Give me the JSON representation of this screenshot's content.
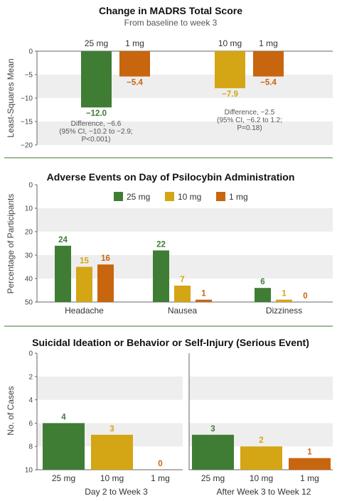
{
  "colors": {
    "25 mg": "#3f7d35",
    "10 mg": "#d4a514",
    "1 mg": "#c8650f",
    "band": "#eeeeee",
    "divider": "#7aa66e"
  },
  "chart_data": [
    {
      "type": "bar",
      "title": "Change in MADRS Total Score",
      "subtitle": "From baseline to week 3",
      "ylabel": "Least-Squares Mean",
      "ylim": [
        -20,
        0
      ],
      "yticks": [
        "0",
        "−5",
        "−10",
        "−15",
        "−20"
      ],
      "grid": "alternating bands",
      "groups": [
        {
          "bars": [
            {
              "name": "25 mg",
              "value": -12.0,
              "label": "−12.0"
            },
            {
              "name": "1 mg",
              "value": -5.4,
              "label": "−5.4"
            }
          ],
          "annotation": [
            "Difference, −6.6",
            "(95% CI, −10.2 to −2.9;",
            "P<0.001)"
          ]
        },
        {
          "bars": [
            {
              "name": "10 mg",
              "value": -7.9,
              "label": "−7.9"
            },
            {
              "name": "1 mg",
              "value": -5.4,
              "label": "−5.4"
            }
          ],
          "annotation": [
            "Difference, −2.5",
            "(95% CI, −6.2 to 1.2;",
            "P=0.18)"
          ]
        }
      ]
    },
    {
      "type": "bar",
      "title": "Adverse Events on Day of Psilocybin Administration",
      "ylabel": "Percentage of Participants",
      "ylim": [
        0,
        50
      ],
      "yticks": [
        "0",
        "10",
        "20",
        "30",
        "40",
        "50"
      ],
      "legend": [
        "25 mg",
        "10 mg",
        "1 mg"
      ],
      "legend_position": "top-center",
      "categories": [
        "Headache",
        "Nausea",
        "Dizziness"
      ],
      "series": [
        {
          "name": "25 mg",
          "values": [
            24,
            22,
            6
          ]
        },
        {
          "name": "10 mg",
          "values": [
            15,
            7,
            1
          ]
        },
        {
          "name": "1 mg",
          "values": [
            16,
            1,
            0
          ]
        }
      ]
    },
    {
      "type": "bar",
      "title": "Suicidal Ideation or Behavior or Self-Injury (Serious Event)",
      "ylabel": "No. of Cases",
      "ylim": [
        0,
        10
      ],
      "yticks": [
        "0",
        "2",
        "4",
        "6",
        "8",
        "10"
      ],
      "panels": [
        {
          "label": "Day 2 to Week 3",
          "categories": [
            "25 mg",
            "10 mg",
            "1 mg"
          ],
          "values": [
            4,
            3,
            0
          ]
        },
        {
          "label": "After Week 3 to Week 12",
          "categories": [
            "25 mg",
            "10 mg",
            "1 mg"
          ],
          "values": [
            3,
            2,
            1
          ]
        }
      ]
    }
  ]
}
